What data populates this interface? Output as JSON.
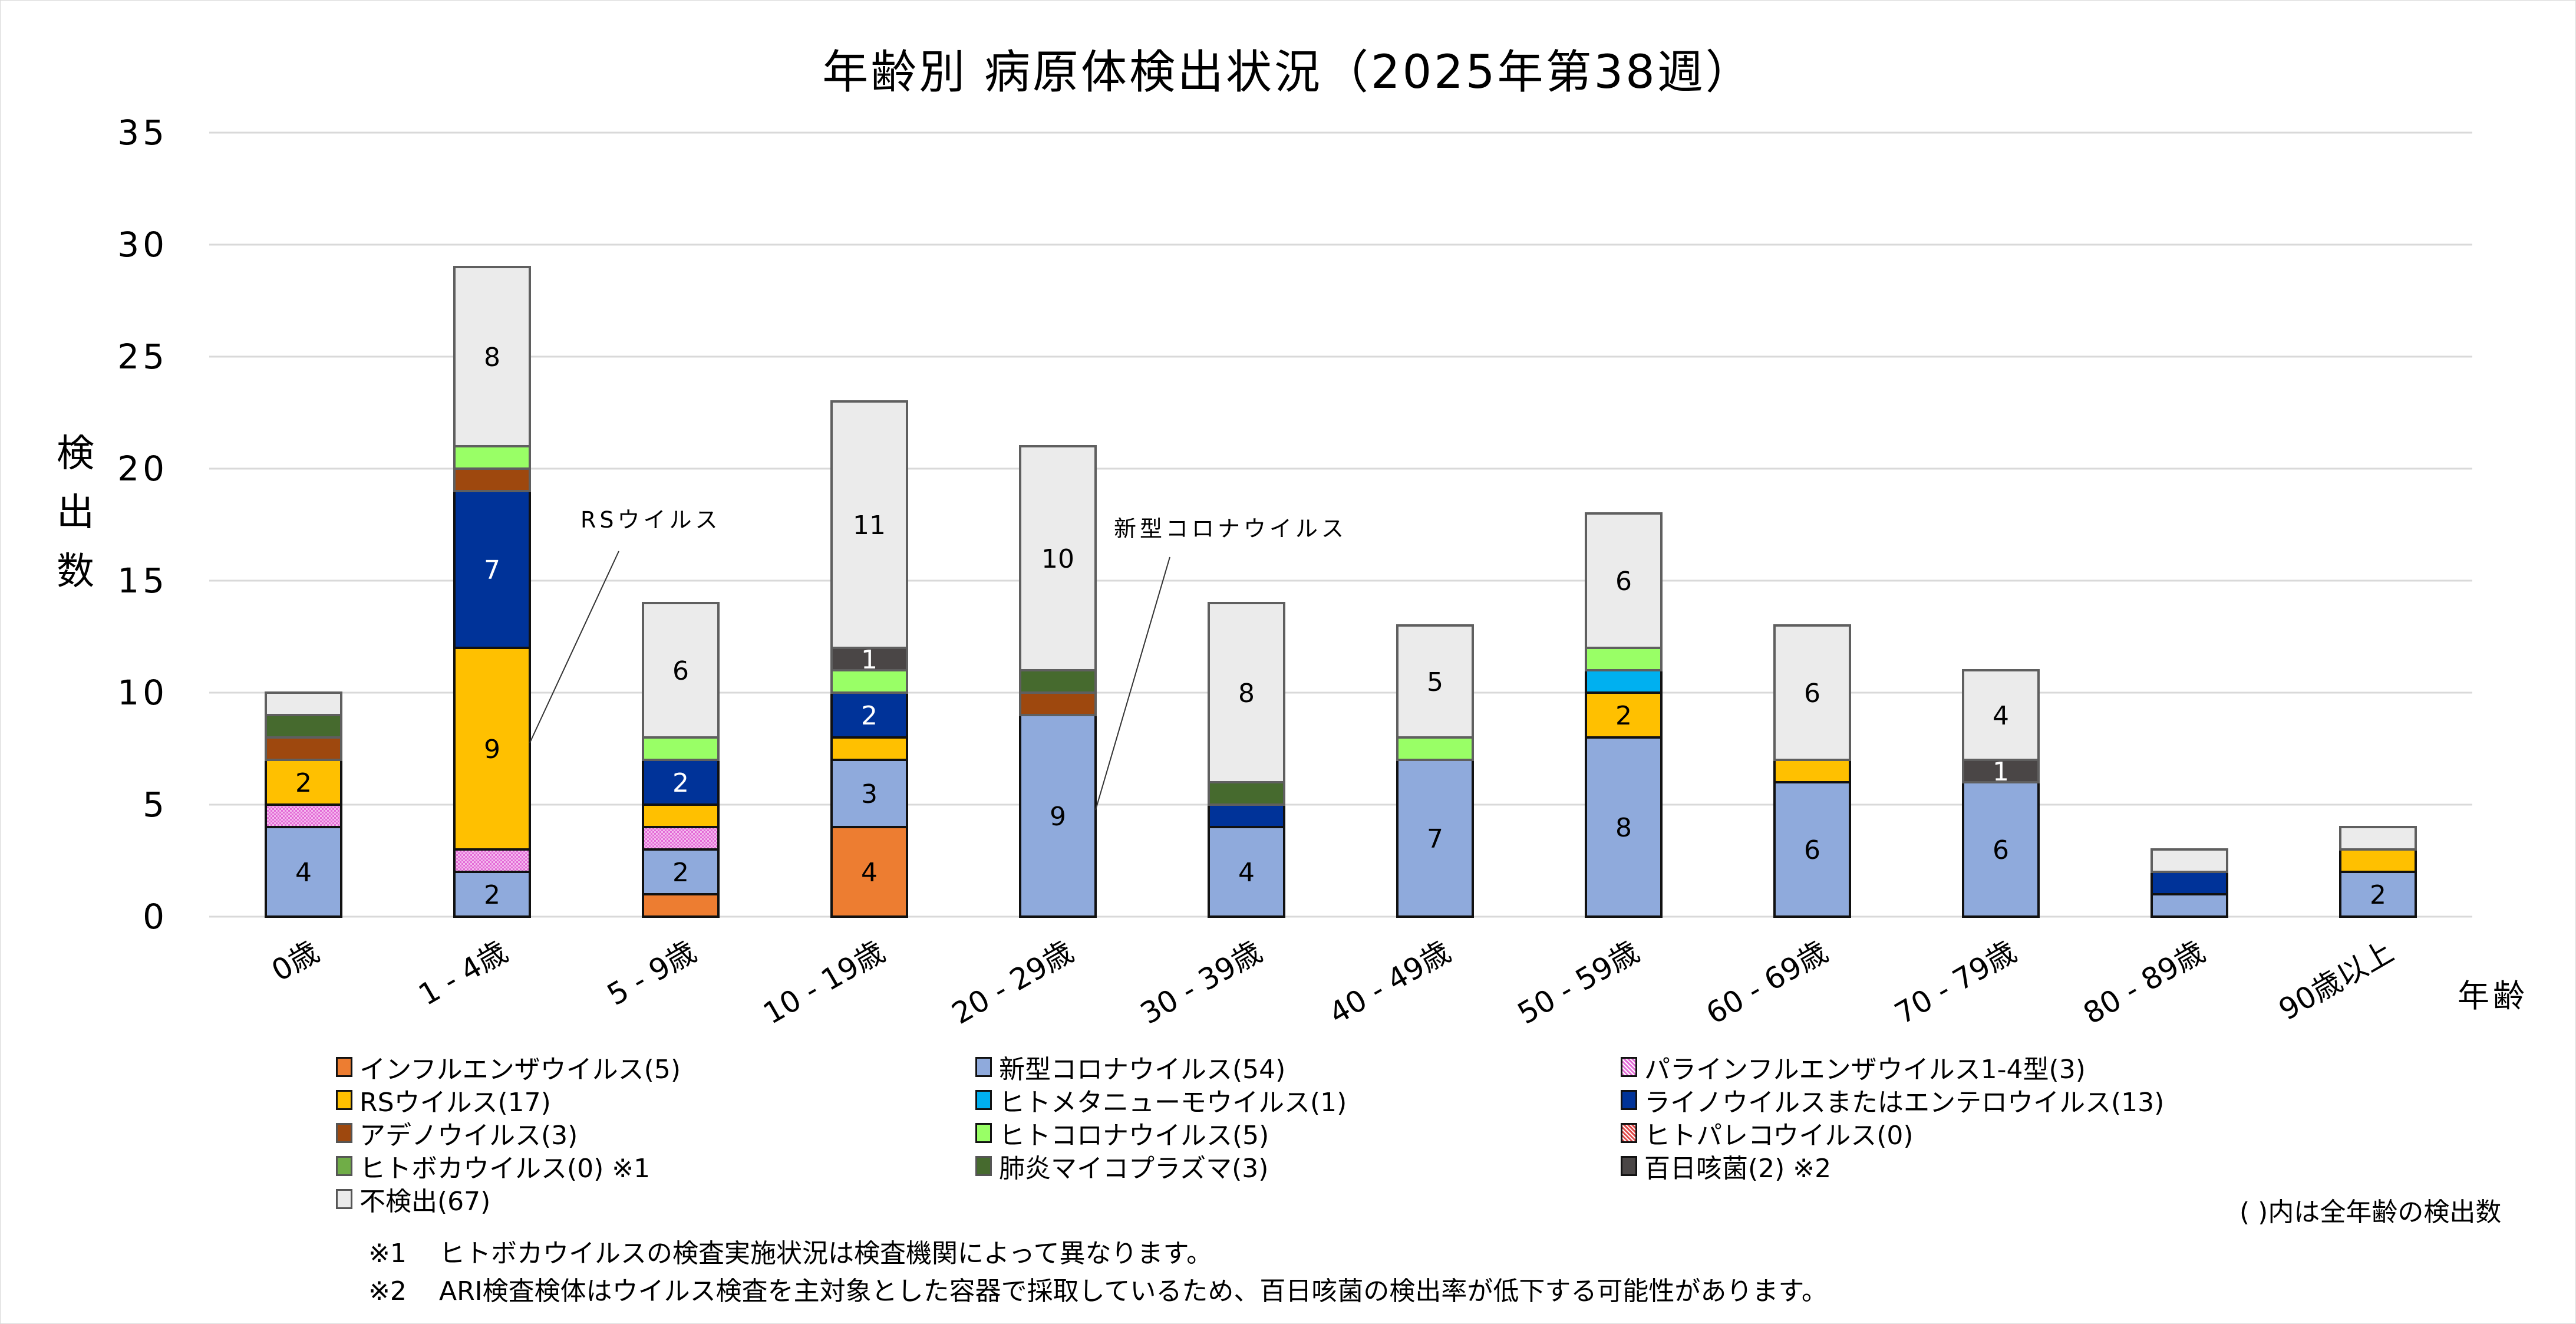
{
  "chart_data": {
    "type": "bar",
    "stacked": true,
    "title": "年齢別 病原体検出状況（2025年第38週）",
    "ylabel": "検出数",
    "xlabel": "年齢",
    "ylim": [
      0,
      35
    ],
    "yticks": [
      0,
      5,
      10,
      15,
      20,
      25,
      30,
      35
    ],
    "grid": true,
    "legend_position": "bottom",
    "categories": [
      "0歳",
      "1 - 4歳",
      "5 - 9歳",
      "10 - 19歳",
      "20 - 29歳",
      "30 - 39歳",
      "40 - 49歳",
      "50 - 59歳",
      "60 - 69歳",
      "70 - 79歳",
      "80 - 89歳",
      "90歳以上"
    ],
    "series": [
      {
        "name": "インフルエンザウイルス(5)",
        "color": "#ED7D31",
        "values": [
          0,
          0,
          1,
          4,
          0,
          0,
          0,
          0,
          0,
          0,
          0,
          0
        ],
        "label_color": "#000000"
      },
      {
        "name": "新型コロナウイルス(54)",
        "color": "#8FAADC",
        "values": [
          4,
          2,
          2,
          3,
          9,
          4,
          7,
          8,
          6,
          6,
          1,
          2
        ],
        "label_color": "#000000"
      },
      {
        "name": "パラインフルエンザウイルス1-4型(3)",
        "color": "#E36CD6",
        "pattern": "dots",
        "values": [
          1,
          1,
          1,
          0,
          0,
          0,
          0,
          0,
          0,
          0,
          0,
          0
        ],
        "label_color": "#000000"
      },
      {
        "name": "RSウイルス(17)",
        "color": "#FFC000",
        "values": [
          2,
          9,
          1,
          1,
          0,
          0,
          0,
          2,
          1,
          0,
          0,
          1
        ],
        "label_color": "#000000"
      },
      {
        "name": "ヒトメタニューモウイルス(1)",
        "color": "#00B0F0",
        "values": [
          0,
          0,
          0,
          0,
          0,
          0,
          0,
          1,
          0,
          0,
          0,
          0
        ],
        "label_color": "#000000"
      },
      {
        "name": "ライノウイルスまたはエンテロウイルス(13)",
        "color": "#003399",
        "values": [
          0,
          7,
          2,
          2,
          0,
          1,
          0,
          0,
          0,
          0,
          1,
          0
        ],
        "label_color": "#FFFFFF"
      },
      {
        "name": "アデノウイルス(3)",
        "color": "#9E480E",
        "values": [
          1,
          1,
          0,
          0,
          1,
          0,
          0,
          0,
          0,
          0,
          0,
          0
        ],
        "label_color": "#FFFFFF"
      },
      {
        "name": "ヒトコロナウイルス(5)",
        "color": "#99FF66",
        "values": [
          0,
          1,
          1,
          1,
          0,
          0,
          1,
          1,
          0,
          0,
          0,
          0
        ],
        "label_color": "#000000"
      },
      {
        "name": "ヒトパレコウイルス(0)",
        "color": "#E04848",
        "pattern": "dots",
        "values": [
          0,
          0,
          0,
          0,
          0,
          0,
          0,
          0,
          0,
          0,
          0,
          0
        ],
        "label_color": "#000000"
      },
      {
        "name": "ヒトボカウイルス(0) ※1",
        "color": "#70AD47",
        "values": [
          0,
          0,
          0,
          0,
          0,
          0,
          0,
          0,
          0,
          0,
          0,
          0
        ],
        "label_color": "#000000"
      },
      {
        "name": "肺炎マイコプラズマ(3)",
        "color": "#466A2E",
        "values": [
          1,
          0,
          0,
          0,
          1,
          1,
          0,
          0,
          0,
          0,
          0,
          0
        ],
        "label_color": "#FFFFFF"
      },
      {
        "name": "百日咳菌(2) ※2",
        "color": "#4A4646",
        "values": [
          0,
          0,
          0,
          1,
          0,
          0,
          0,
          0,
          0,
          1,
          0,
          0
        ],
        "label_color": "#FFFFFF"
      },
      {
        "name": "不検出(67)",
        "color": "#EBEBEB",
        "values": [
          1,
          8,
          6,
          11,
          10,
          8,
          5,
          6,
          6,
          4,
          1,
          1
        ],
        "label_color": "#000000"
      }
    ],
    "totals": [
      10,
      29,
      14,
      23,
      21,
      14,
      13,
      18,
      13,
      11,
      3,
      4
    ],
    "annotations": [
      {
        "text": "RSウイルス",
        "category": "1 - 4歳",
        "series": "RSウイルス(17)"
      },
      {
        "text": "新型コロナウイルス",
        "category": "20 - 29歳",
        "series": "新型コロナウイルス(54)"
      }
    ]
  },
  "legend_order": [
    [
      "インフルエンザウイルス(5)",
      "新型コロナウイルス(54)",
      "パラインフルエンザウイルス1-4型(3)"
    ],
    [
      "RSウイルス(17)",
      "ヒトメタニューモウイルス(1)",
      "ライノウイルスまたはエンテロウイルス(13)"
    ],
    [
      "アデノウイルス(3)",
      "ヒトコロナウイルス(5)",
      "ヒトパレコウイルス(0)"
    ],
    [
      "ヒトボカウイルス(0) ※1",
      "肺炎マイコプラズマ(3)",
      "百日咳菌(2) ※2"
    ],
    [
      "不検出(67)"
    ]
  ],
  "legend_note": "( )内は全年齢の検出数",
  "footnotes": [
    {
      "mark": "※1",
      "text": "ヒトボカウイルスの検査実施状況は検査機関によって異なります。"
    },
    {
      "mark": "※2",
      "text": "ARI検査検体はウイルス検査を主対象とした容器で採取しているため、百日咳菌の検出率が低下する可能性があります。"
    }
  ]
}
